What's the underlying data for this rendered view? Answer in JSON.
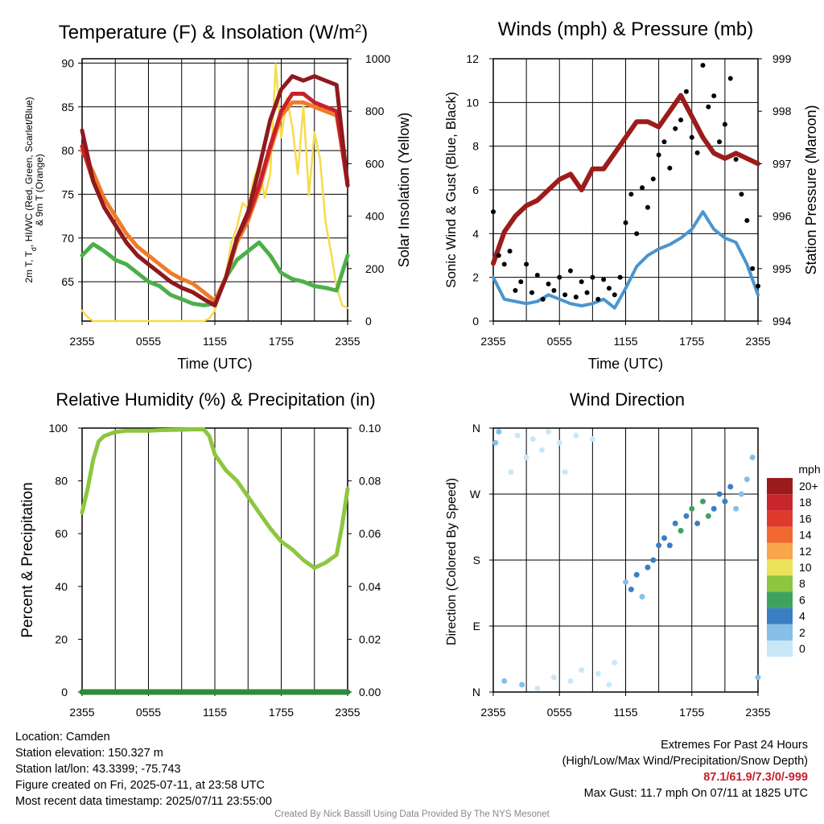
{
  "chart_data": [
    {
      "type": "line",
      "title": "Temperature (F) & Insolation (W/m²)",
      "xlabel": "Time (UTC)",
      "ylabel": "2m T, Td, HI/WC (Red, Green, Scarlet/Blue) & 9m T (Orange)",
      "y2label": "Solar Insolation (Yellow)",
      "x_ticks": [
        "2355",
        "0555",
        "1155",
        "1755",
        "2355"
      ],
      "ylim": [
        60.5,
        90.5
      ],
      "y_ticks": [
        65,
        70,
        75,
        80,
        85,
        90
      ],
      "y2lim": [
        0,
        1000
      ],
      "y2_ticks": [
        0,
        200,
        400,
        600,
        800,
        1000
      ],
      "colors": {
        "temp": "#c8202b",
        "dewpoint": "#4cb04a",
        "heat_index": "#8e1a1e",
        "temp9m": "#f07b28",
        "insolation": "#f6dc4a"
      },
      "series": [
        {
          "name": "2m T",
          "axis": "left",
          "x": [
            0,
            1,
            2,
            3,
            4,
            5,
            6,
            7,
            8,
            9,
            10,
            11,
            12,
            13,
            14,
            15,
            16,
            17,
            18,
            19,
            20,
            21,
            22,
            23,
            24
          ],
          "values": [
            80.5,
            76.5,
            73.5,
            71.5,
            69.5,
            68.0,
            67.0,
            66.0,
            65.0,
            64.3,
            63.8,
            63.0,
            62.3,
            65.5,
            70.0,
            72.5,
            76.0,
            80.5,
            84.5,
            86.5,
            86.5,
            85.5,
            85.0,
            84.5,
            76.0
          ]
        },
        {
          "name": "Td",
          "axis": "left",
          "x": [
            0,
            1,
            2,
            3,
            4,
            5,
            6,
            7,
            8,
            9,
            10,
            11,
            12,
            13,
            14,
            15,
            16,
            17,
            18,
            19,
            20,
            21,
            22,
            23,
            24
          ],
          "values": [
            68.0,
            69.3,
            68.5,
            67.5,
            67.0,
            66.0,
            65.0,
            64.5,
            63.5,
            63.0,
            62.5,
            62.3,
            62.5,
            65.5,
            67.5,
            68.5,
            69.5,
            68.0,
            66.0,
            65.3,
            65.0,
            64.5,
            64.3,
            64.0,
            68.0
          ]
        },
        {
          "name": "HI/WC",
          "axis": "left",
          "x": [
            0,
            1,
            2,
            3,
            4,
            5,
            6,
            7,
            8,
            9,
            10,
            11,
            12,
            13,
            14,
            15,
            16,
            17,
            18,
            19,
            20,
            21,
            22,
            23,
            24
          ],
          "values": [
            82.3,
            76.5,
            73.5,
            71.5,
            69.5,
            68.0,
            67.0,
            66.0,
            65.0,
            64.3,
            63.8,
            63.0,
            62.3,
            65.5,
            70.0,
            73.0,
            78.0,
            83.5,
            87.0,
            88.5,
            88.0,
            88.5,
            88.0,
            87.5,
            76.0
          ]
        },
        {
          "name": "9m T",
          "axis": "left",
          "x": [
            0,
            1,
            2,
            3,
            4,
            5,
            6,
            7,
            8,
            9,
            10,
            11,
            12,
            13,
            14,
            15,
            16,
            17,
            18,
            19,
            20,
            21,
            22,
            23,
            24
          ],
          "values": [
            80.0,
            77.5,
            74.5,
            72.5,
            70.5,
            69.0,
            68.0,
            67.0,
            66.0,
            65.3,
            64.8,
            63.8,
            62.8,
            65.5,
            69.5,
            72.0,
            75.5,
            80.0,
            84.0,
            85.5,
            85.5,
            85.0,
            84.5,
            84.0,
            76.5
          ]
        },
        {
          "name": "Insolation",
          "axis": "right",
          "x": [
            0,
            0.5,
            1,
            2,
            3,
            4,
            5,
            6,
            7,
            8,
            9,
            10,
            11,
            11.5,
            12,
            12.5,
            13,
            13.5,
            14,
            14.5,
            15,
            15.5,
            16,
            16.5,
            17,
            17.5,
            18,
            18.5,
            19,
            19.5,
            20,
            20.5,
            21,
            21.5,
            22,
            22.5,
            23,
            23.5,
            24
          ],
          "values": [
            40,
            15,
            0,
            0,
            0,
            0,
            0,
            0,
            0,
            0,
            0,
            0,
            0,
            10,
            40,
            110,
            180,
            300,
            360,
            450,
            430,
            540,
            600,
            470,
            560,
            980,
            700,
            850,
            740,
            560,
            820,
            480,
            720,
            620,
            380,
            260,
            130,
            60,
            50
          ]
        }
      ]
    },
    {
      "type": "scatter",
      "title": "Winds (mph) & Pressure (mb)",
      "xlabel": "Time (UTC)",
      "ylabel": "Sonic Wind & Gust (Blue, Black)",
      "y2label": "Station Pressure (Maroon)",
      "x_ticks": [
        "2355",
        "0555",
        "1155",
        "1755",
        "2355"
      ],
      "ylim": [
        0,
        12
      ],
      "y_ticks": [
        0,
        2,
        4,
        6,
        8,
        10,
        12
      ],
      "y2lim": [
        994,
        999
      ],
      "y2_ticks": [
        994,
        995,
        996,
        997,
        998,
        999
      ],
      "colors": {
        "wind": "#4a95cf",
        "gust": "#000000",
        "pressure": "#9c1c1c"
      },
      "series": [
        {
          "name": "Sonic Wind",
          "axis": "left",
          "x": [
            0,
            1,
            2,
            3,
            4,
            5,
            6,
            7,
            8,
            9,
            10,
            11,
            12,
            13,
            14,
            15,
            16,
            17,
            18,
            19,
            20,
            21,
            22,
            23,
            24
          ],
          "values": [
            2.0,
            1.0,
            0.9,
            0.8,
            0.9,
            1.2,
            1.0,
            0.8,
            0.7,
            0.8,
            1.0,
            0.6,
            1.5,
            2.5,
            3.0,
            3.3,
            3.5,
            3.8,
            4.2,
            5.0,
            4.2,
            3.8,
            3.6,
            2.6,
            1.2
          ]
        },
        {
          "name": "Gust",
          "axis": "left",
          "x": [
            0,
            0.5,
            1,
            1.5,
            2,
            2.5,
            3,
            3.5,
            4,
            4.5,
            5,
            5.5,
            6,
            6.5,
            7,
            7.5,
            8,
            8.5,
            9,
            9.5,
            10,
            10.5,
            11,
            11.5,
            12,
            12.5,
            13,
            13.5,
            14,
            14.5,
            15,
            15.5,
            16,
            16.5,
            17,
            17.5,
            18,
            18.5,
            19,
            19.5,
            20,
            20.5,
            21,
            21.5,
            22,
            22.5,
            23,
            23.5,
            24
          ],
          "values": [
            5.0,
            3.0,
            2.6,
            3.2,
            1.4,
            1.8,
            2.6,
            1.3,
            2.1,
            1.0,
            1.7,
            1.4,
            2.0,
            1.2,
            2.3,
            1.1,
            1.8,
            1.3,
            2.0,
            1.0,
            1.9,
            1.5,
            1.2,
            2.0,
            4.5,
            5.8,
            4.0,
            6.1,
            5.2,
            6.5,
            7.6,
            8.2,
            7.0,
            8.8,
            9.2,
            10.5,
            8.4,
            7.7,
            11.7,
            9.8,
            10.3,
            8.2,
            9.0,
            11.1,
            7.4,
            5.8,
            4.6,
            2.4,
            1.6
          ]
        },
        {
          "name": "Station Pressure",
          "axis": "right",
          "x": [
            0,
            1,
            2,
            3,
            4,
            5,
            6,
            7,
            8,
            9,
            10,
            11,
            12,
            13,
            14,
            15,
            16,
            17,
            18,
            19,
            20,
            21,
            22,
            23,
            24
          ],
          "values": [
            995.1,
            995.7,
            996.0,
            996.2,
            996.3,
            996.5,
            996.7,
            996.8,
            996.5,
            996.9,
            996.9,
            997.2,
            997.5,
            997.8,
            997.8,
            997.7,
            998.0,
            998.3,
            997.9,
            997.5,
            997.2,
            997.1,
            997.2,
            997.1,
            997.0
          ]
        }
      ]
    },
    {
      "type": "line",
      "title": "Relative Humidity (%) & Precipitation (in)",
      "ylabel": "Percent & Precipitation",
      "x_ticks": [
        "2355",
        "0555",
        "1155",
        "1755",
        "2355"
      ],
      "ylim": [
        0,
        100
      ],
      "y_ticks": [
        0,
        20,
        40,
        60,
        80,
        100
      ],
      "y2lim": [
        0,
        0.1
      ],
      "y2_ticks": [
        "0.00",
        "0.02",
        "0.04",
        "0.06",
        "0.08",
        "0.10"
      ],
      "colors": {
        "rh": "#8dc63f",
        "precip": "#2e8b3a"
      },
      "series": [
        {
          "name": "Relative Humidity",
          "axis": "left",
          "x": [
            0,
            0.5,
            1,
            1.5,
            2,
            3,
            4,
            5,
            6,
            7,
            8,
            9,
            10,
            11,
            11.5,
            12,
            13,
            14,
            15,
            16,
            17,
            18,
            19,
            20,
            21,
            22,
            23,
            23.5,
            24
          ],
          "values": [
            68,
            77,
            88,
            95,
            97,
            98.5,
            99,
            99,
            99,
            99.2,
            99.3,
            99.4,
            99.5,
            99.5,
            97,
            90,
            84,
            80,
            74,
            68,
            62,
            57,
            54,
            50,
            47,
            49,
            52,
            63,
            77
          ]
        },
        {
          "name": "Precipitation",
          "axis": "right",
          "x": [
            0,
            24
          ],
          "values": [
            0,
            0
          ]
        }
      ]
    },
    {
      "type": "scatter",
      "title": "Wind Direction",
      "ylabel": "Direction (Colored By Speed)",
      "x_ticks": [
        "2355",
        "0555",
        "1155",
        "1755",
        "2355"
      ],
      "y_ticks": [
        "N",
        "E",
        "S",
        "W",
        "N"
      ],
      "legend": {
        "title": "mph",
        "labels": [
          "20+",
          "18",
          "16",
          "14",
          "12",
          "10",
          "8",
          "6",
          "4",
          "2",
          "0"
        ],
        "colors": [
          "#9a1b1e",
          "#c7262c",
          "#e03a2f",
          "#f06a30",
          "#f8a54b",
          "#ece35b",
          "#8dc63f",
          "#3fa35f",
          "#3b7fc3",
          "#86bfe8",
          "#c8e8f8"
        ]
      },
      "points": [
        {
          "t": 0.2,
          "dir": 340,
          "spd": 1
        },
        {
          "t": 0.5,
          "dir": 355,
          "spd": 1
        },
        {
          "t": 1.0,
          "dir": 15,
          "spd": 1
        },
        {
          "t": 1.6,
          "dir": 300,
          "spd": 0.5
        },
        {
          "t": 2.2,
          "dir": 350,
          "spd": 0.5
        },
        {
          "t": 2.6,
          "dir": 10,
          "spd": 1
        },
        {
          "t": 3.0,
          "dir": 320,
          "spd": 0.5
        },
        {
          "t": 3.6,
          "dir": 345,
          "spd": 0.5
        },
        {
          "t": 4.0,
          "dir": 5,
          "spd": 0.5
        },
        {
          "t": 4.4,
          "dir": 330,
          "spd": 0.5
        },
        {
          "t": 5.0,
          "dir": 355,
          "spd": 0.5
        },
        {
          "t": 5.5,
          "dir": 20,
          "spd": 0.5
        },
        {
          "t": 6.0,
          "dir": 340,
          "spd": 0.5
        },
        {
          "t": 6.5,
          "dir": 300,
          "spd": 0.5
        },
        {
          "t": 7.0,
          "dir": 15,
          "spd": 0.5
        },
        {
          "t": 7.5,
          "dir": 350,
          "spd": 0.5
        },
        {
          "t": 8.0,
          "dir": 30,
          "spd": 0.5
        },
        {
          "t": 9.0,
          "dir": 345,
          "spd": 0.5
        },
        {
          "t": 9.5,
          "dir": 25,
          "spd": 0.5
        },
        {
          "t": 10.5,
          "dir": 10,
          "spd": 0.5
        },
        {
          "t": 11.0,
          "dir": 40,
          "spd": 0.5
        },
        {
          "t": 12.0,
          "dir": 150,
          "spd": 2.5
        },
        {
          "t": 12.5,
          "dir": 140,
          "spd": 3
        },
        {
          "t": 13.0,
          "dir": 160,
          "spd": 3
        },
        {
          "t": 13.5,
          "dir": 130,
          "spd": 2.5
        },
        {
          "t": 14.0,
          "dir": 170,
          "spd": 3.5
        },
        {
          "t": 14.5,
          "dir": 180,
          "spd": 3
        },
        {
          "t": 15.0,
          "dir": 200,
          "spd": 3.5
        },
        {
          "t": 15.5,
          "dir": 210,
          "spd": 4
        },
        {
          "t": 16.0,
          "dir": 200,
          "spd": 3.5
        },
        {
          "t": 16.5,
          "dir": 230,
          "spd": 4
        },
        {
          "t": 17.0,
          "dir": 220,
          "spd": 5
        },
        {
          "t": 17.5,
          "dir": 240,
          "spd": 4
        },
        {
          "t": 18.0,
          "dir": 250,
          "spd": 5.5
        },
        {
          "t": 18.5,
          "dir": 230,
          "spd": 4
        },
        {
          "t": 19.0,
          "dir": 260,
          "spd": 5
        },
        {
          "t": 19.5,
          "dir": 240,
          "spd": 6.5
        },
        {
          "t": 20.0,
          "dir": 250,
          "spd": 4
        },
        {
          "t": 20.5,
          "dir": 270,
          "spd": 3
        },
        {
          "t": 21.0,
          "dir": 260,
          "spd": 4
        },
        {
          "t": 21.5,
          "dir": 280,
          "spd": 3
        },
        {
          "t": 22.0,
          "dir": 250,
          "spd": 2.5
        },
        {
          "t": 22.5,
          "dir": 270,
          "spd": 2
        },
        {
          "t": 23.0,
          "dir": 290,
          "spd": 1
        },
        {
          "t": 23.5,
          "dir": 320,
          "spd": 1
        },
        {
          "t": 24.0,
          "dir": 20,
          "spd": 1
        }
      ]
    }
  ],
  "footer": {
    "location": "Location: Camden",
    "elevation": "Station elevation: 150.327 m",
    "latlon": "Station lat/lon: 43.3399; -75.743",
    "created": "Figure created on Fri, 2025-07-11, at 23:58 UTC",
    "recent": "Most recent data timestamp: 2025/07/11 23:55:00",
    "extremes_title": "Extremes For Past 24 Hours",
    "extremes_sub": "(High/Low/Max Wind/Precipitation/Snow Depth)",
    "extremes_values": "87.1/61.9/7.3/0/-999",
    "max_gust": "Max Gust: 11.7 mph On 07/11 at 1825 UTC",
    "credit": "Created By Nick Bassill Using Data Provided By The NYS Mesonet"
  }
}
